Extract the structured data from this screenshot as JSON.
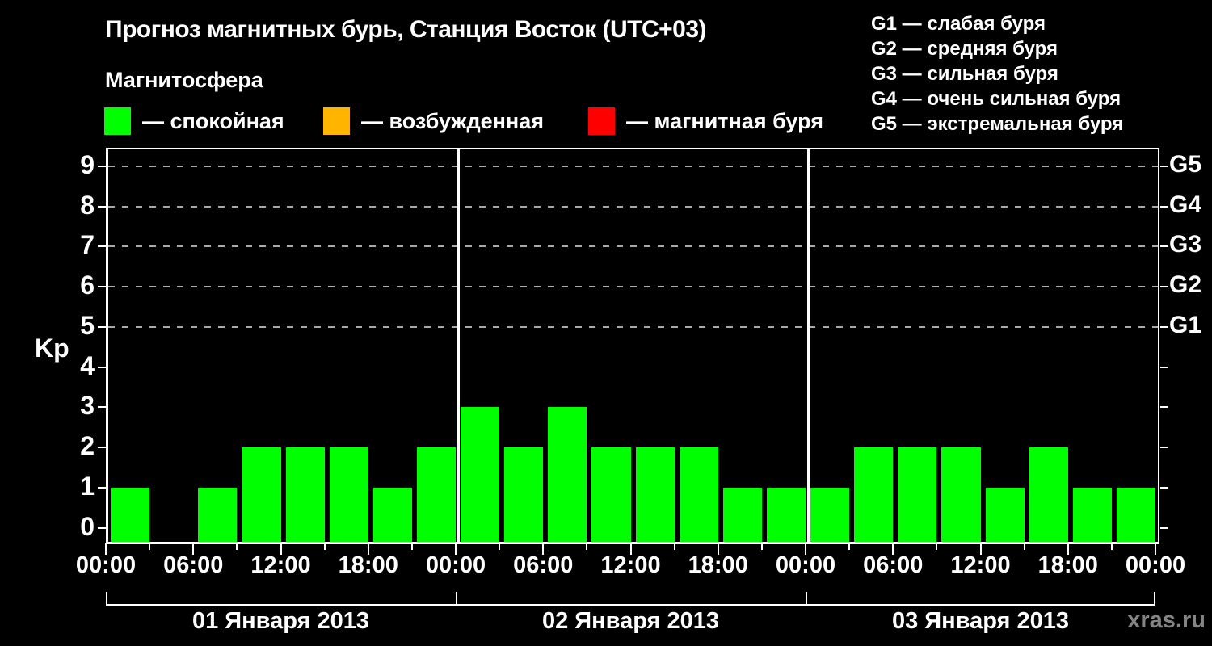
{
  "title": "Прогноз магнитных бурь, Станция Восток (UTC+03)",
  "subtitle": "Магнитосфера",
  "legend": {
    "items": [
      {
        "name": "quiet",
        "label": "— спокойная",
        "color": "#00ff00"
      },
      {
        "name": "excited",
        "label": "— возбужденная",
        "color": "#ffb400"
      },
      {
        "name": "storm",
        "label": "— магнитная буря",
        "color": "#ff0000"
      }
    ],
    "positions_x": [
      0,
      271,
      599
    ]
  },
  "storm_scale": {
    "items": [
      {
        "code": "G1",
        "label": "слабая буря",
        "kp": 5
      },
      {
        "code": "G2",
        "label": "средняя буря",
        "kp": 6
      },
      {
        "code": "G3",
        "label": "сильная буря",
        "kp": 7
      },
      {
        "code": "G4",
        "label": "очень сильная буря",
        "kp": 8
      },
      {
        "code": "G5",
        "label": "экстремальная буря",
        "kp": 9
      }
    ]
  },
  "watermark": "xras.ru",
  "chart_data": {
    "type": "bar",
    "title": "Прогноз магнитных бурь, Станция Восток (UTC+03)",
    "ylabel": "Kp",
    "xlabel": "",
    "ylim": [
      -0.35,
      9.42
    ],
    "y_ticks": [
      0,
      1,
      2,
      3,
      4,
      5,
      6,
      7,
      8,
      9
    ],
    "grid_levels": [
      5,
      6,
      7,
      8,
      9
    ],
    "grid_on": true,
    "legend_position": "top",
    "hours_per_bar": 3,
    "bars_per_day": 8,
    "x_tick_labels": [
      "00:00",
      "06:00",
      "12:00",
      "18:00",
      "00:00",
      "06:00",
      "12:00",
      "18:00",
      "00:00",
      "06:00",
      "12:00",
      "18:00",
      "00:00"
    ],
    "color_thresholds": {
      "quiet_max_kp": 3,
      "excited_kp": 4,
      "storm_min_kp": 5
    },
    "days": [
      {
        "date": "01 Января 2013",
        "values": [
          1,
          0,
          1,
          2,
          2,
          2,
          1,
          2
        ]
      },
      {
        "date": "02 Января 2013",
        "values": [
          3,
          2,
          3,
          2,
          2,
          2,
          1,
          1
        ]
      },
      {
        "date": "03 Января 2013",
        "values": [
          1,
          2,
          2,
          2,
          1,
          2,
          1,
          1
        ]
      }
    ]
  }
}
